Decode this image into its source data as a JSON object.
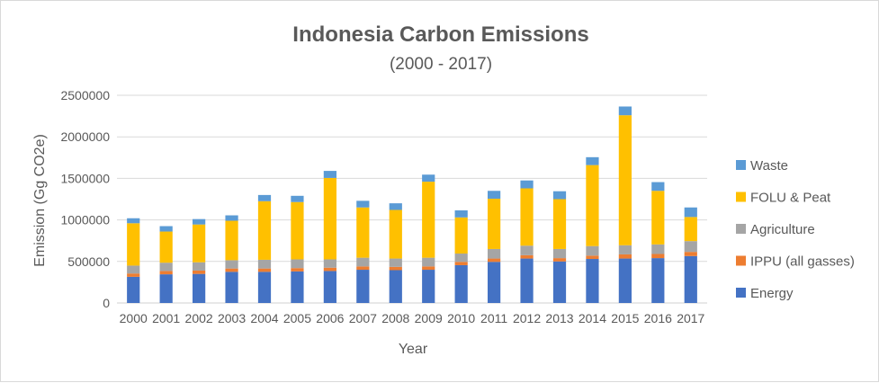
{
  "chart_data": {
    "type": "bar",
    "stacked": true,
    "title": "Indonesia Carbon Emissions",
    "subtitle": "(2000 - 2017)",
    "xlabel": "Year",
    "ylabel": "Emission (Gg CO2e)",
    "ylim": [
      0,
      2500000
    ],
    "yticks": [
      0,
      500000,
      1000000,
      1500000,
      2000000,
      2500000
    ],
    "ytick_labels": [
      "0",
      "500000",
      "1000000",
      "1500000",
      "2000000",
      "2500000"
    ],
    "grid": true,
    "legend_position": "right",
    "categories": [
      "2000",
      "2001",
      "2002",
      "2003",
      "2004",
      "2005",
      "2006",
      "2007",
      "2008",
      "2009",
      "2010",
      "2011",
      "2012",
      "2013",
      "2014",
      "2015",
      "2016",
      "2017"
    ],
    "series": [
      {
        "name": "Energy",
        "color": "#4472C4",
        "values": [
          315000,
          345000,
          350000,
          375000,
          375000,
          380000,
          385000,
          400000,
          395000,
          400000,
          455000,
          495000,
          535000,
          500000,
          530000,
          535000,
          540000,
          565000
        ]
      },
      {
        "name": "IPPU (all gasses)",
        "color": "#ED7D31",
        "values": [
          40000,
          40000,
          40000,
          40000,
          40000,
          40000,
          40000,
          40000,
          40000,
          40000,
          40000,
          40000,
          40000,
          40000,
          40000,
          50000,
          50000,
          50000
        ]
      },
      {
        "name": "Agriculture",
        "color": "#A5A5A5",
        "values": [
          95000,
          100000,
          100000,
          100000,
          105000,
          105000,
          100000,
          105000,
          100000,
          105000,
          100000,
          115000,
          115000,
          110000,
          115000,
          110000,
          115000,
          130000
        ]
      },
      {
        "name": "FOLU & Peat",
        "color": "#FFC000",
        "values": [
          510000,
          375000,
          455000,
          475000,
          705000,
          690000,
          980000,
          605000,
          585000,
          915000,
          435000,
          605000,
          690000,
          600000,
          975000,
          1565000,
          645000,
          290000
        ]
      },
      {
        "name": "Waste",
        "color": "#5B9BD5",
        "values": [
          60000,
          65000,
          65000,
          65000,
          75000,
          75000,
          85000,
          80000,
          80000,
          85000,
          85000,
          95000,
          95000,
          95000,
          95000,
          105000,
          105000,
          115000
        ]
      }
    ]
  }
}
